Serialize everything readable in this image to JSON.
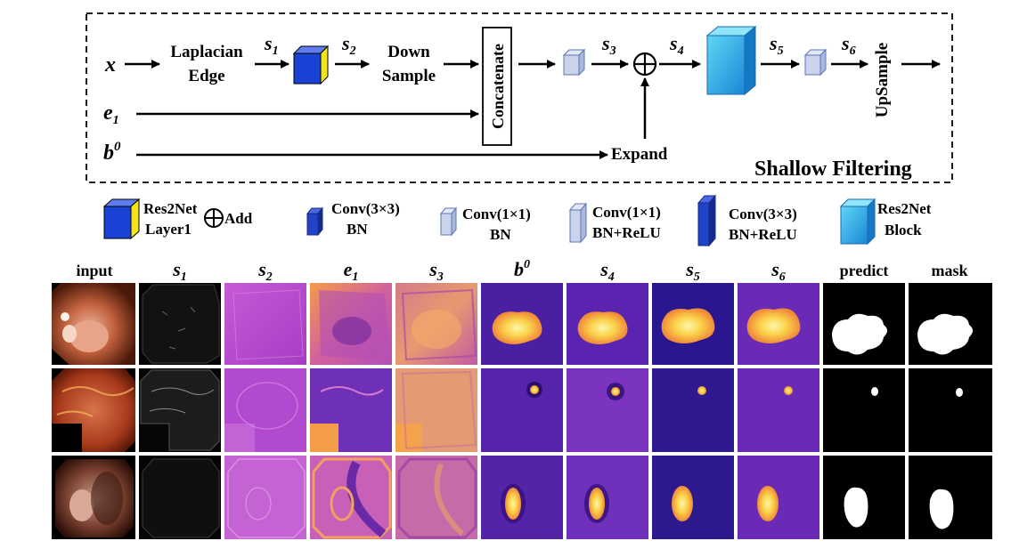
{
  "pipeline": {
    "input_x": "x",
    "input_e": "e",
    "input_e_sub": "1",
    "input_b": "b",
    "input_b_sup": "0",
    "laplacian_line1": "Laplacian",
    "laplacian_line2": "Edge",
    "s1": "s",
    "s1_sub": "1",
    "s2": "s",
    "s2_sub": "2",
    "down_line1": "Down",
    "down_line2": "Sample",
    "concatenate": "Concatenate",
    "s3": "s",
    "s3_sub": "3",
    "s4": "s",
    "s4_sub": "4",
    "s5": "s",
    "s5_sub": "5",
    "s6": "s",
    "s6_sub": "6",
    "expand": "Expand",
    "upsample": "UpSample",
    "title": "Shallow Filtering"
  },
  "legend": {
    "res2net_layer_1": "Res2Net",
    "res2net_layer_2": "Layer1",
    "add": "Add",
    "conv3_bn_1": "Conv(3×3)",
    "conv3_bn_2": "BN",
    "conv1_bn_1": "Conv(1×1)",
    "conv1_bn_2": "BN",
    "conv1_bnrelu_1": "Conv(1×1)",
    "conv1_bnrelu_2": "BN+ReLU",
    "conv3_bnrelu_1": "Conv(3×3)",
    "conv3_bnrelu_2": "BN+ReLU",
    "block_1": "Res2Net",
    "block_2": "Block"
  },
  "grid": {
    "headers": [
      {
        "t": "input",
        "sub": "",
        "sup": "",
        "italic": false
      },
      {
        "t": "s",
        "sub": "1",
        "sup": "",
        "italic": true
      },
      {
        "t": "s",
        "sub": "2",
        "sup": "",
        "italic": true
      },
      {
        "t": "e",
        "sub": "1",
        "sup": "",
        "italic": true
      },
      {
        "t": "s",
        "sub": "3",
        "sup": "",
        "italic": true
      },
      {
        "t": "b",
        "sub": "",
        "sup": "0",
        "italic": true
      },
      {
        "t": "s",
        "sub": "4",
        "sup": "",
        "italic": true
      },
      {
        "t": "s",
        "sub": "5",
        "sup": "",
        "italic": true
      },
      {
        "t": "s",
        "sub": "6",
        "sup": "",
        "italic": true
      },
      {
        "t": "predict",
        "sub": "",
        "sup": "",
        "italic": false
      },
      {
        "t": "mask",
        "sub": "",
        "sup": "",
        "italic": false
      }
    ]
  },
  "colors": {
    "res2net_blue": "#1a43d6",
    "res2net_yellow": "#f2e51c",
    "conv_blue": "#2143c6",
    "conv_light": "#c9d3ea",
    "block_cyan": "#1aa7e6",
    "magma_dark": "#3a1a8c",
    "magma_mid": "#b347c7",
    "magma_light": "#f4a04a",
    "blob_yellow": "#fbd24a",
    "tissue_red": "#b04a2a"
  }
}
